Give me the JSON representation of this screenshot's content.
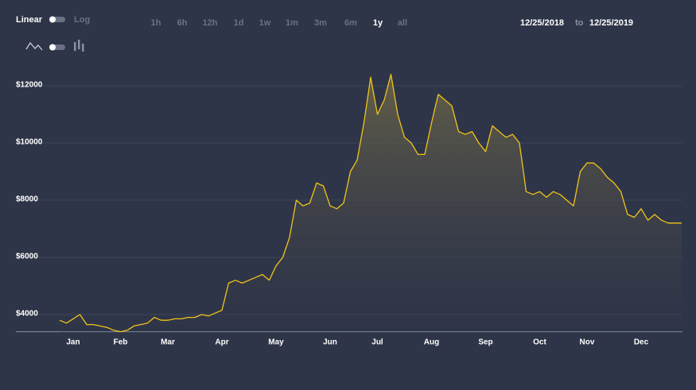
{
  "controls": {
    "scale_options": [
      "Linear",
      "Log"
    ],
    "ranges": [
      "1h",
      "6h",
      "12h",
      "1d",
      "1w",
      "1m",
      "3m",
      "6m",
      "1y",
      "all"
    ],
    "selected_range": 8,
    "date_from": "12/25/2018",
    "date_separator": "to",
    "date_to": "12/25/2019"
  },
  "chart_data": {
    "type": "area",
    "color": "#f0c419",
    "grid": true,
    "categories": [
      null,
      null,
      "Jan",
      null,
      null,
      null,
      null,
      null,
      null,
      "Feb",
      null,
      null,
      null,
      null,
      null,
      null,
      "Mar",
      null,
      null,
      null,
      null,
      null,
      null,
      null,
      "Apr",
      null,
      null,
      null,
      null,
      null,
      null,
      null,
      "May",
      null,
      null,
      null,
      null,
      null,
      null,
      null,
      "Jun",
      null,
      null,
      null,
      null,
      null,
      null,
      "Jul",
      null,
      null,
      null,
      null,
      null,
      null,
      null,
      "Aug",
      null,
      null,
      null,
      null,
      null,
      null,
      null,
      "Sep",
      null,
      null,
      null,
      null,
      null,
      null,
      null,
      "Oct",
      null,
      null,
      null,
      null,
      null,
      null,
      "Nov",
      null,
      null,
      null,
      null,
      null,
      null,
      null,
      "Dec",
      null,
      null,
      null,
      null,
      null,
      null
    ],
    "values": [
      3800,
      3700,
      3850,
      4000,
      3650,
      3650,
      3600,
      3550,
      3450,
      3400,
      3450,
      3600,
      3650,
      3700,
      3900,
      3800,
      3800,
      3850,
      3850,
      3900,
      3900,
      4000,
      3950,
      4050,
      4150,
      5100,
      5200,
      5100,
      5200,
      5300,
      5400,
      5200,
      5700,
      6000,
      6700,
      8000,
      7800,
      7900,
      8600,
      8500,
      7800,
      7700,
      7900,
      9000,
      9400,
      10700,
      12300,
      11000,
      11500,
      12400,
      11000,
      10200,
      10000,
      9600,
      9600,
      10700,
      11700,
      11500,
      11300,
      10400,
      10300,
      10400,
      10000,
      9700,
      10600,
      10400,
      10200,
      10300,
      10000,
      8300,
      8200,
      8300,
      8100,
      8300,
      8200,
      8000,
      7800,
      9000,
      9300,
      9300,
      9100,
      8800,
      8600,
      8300,
      7500,
      7400,
      7700,
      7300,
      7500,
      7300,
      7200,
      7200,
      7200
    ],
    "ylim": [
      3400,
      13000
    ],
    "yticks": [
      {
        "value": 4000,
        "label": "$4000"
      },
      {
        "value": 6000,
        "label": "$6000"
      },
      {
        "value": 8000,
        "label": "$8000"
      },
      {
        "value": 10000,
        "label": "$10000"
      },
      {
        "value": 12000,
        "label": "$12000"
      }
    ]
  }
}
